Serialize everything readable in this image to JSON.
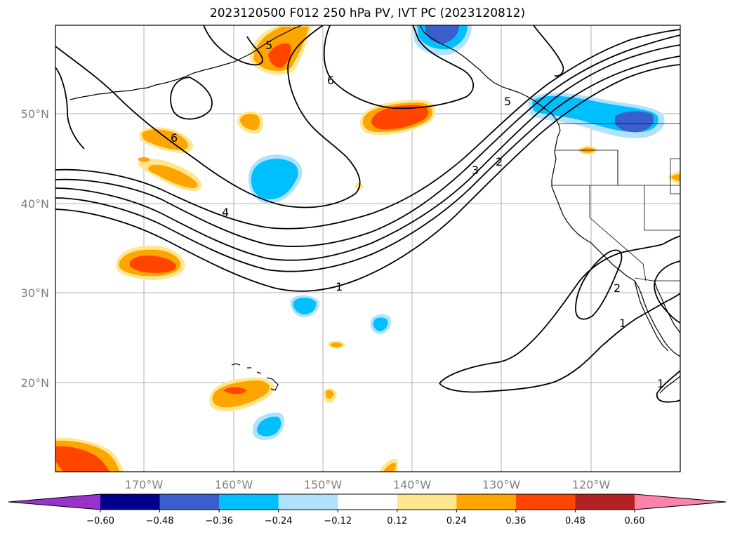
{
  "title": "2023120500 F012 250 hPa PV, IVT PC (2023120812)",
  "lat_labels": [
    "50°N",
    "40°N",
    "30°N",
    "20°N"
  ],
  "lon_labels": [
    "170°W",
    "160°W",
    "150°W",
    "140°W",
    "130°W",
    "120°W"
  ],
  "colorbar": {
    "tick_labels": [
      "−0.60",
      "−0.48",
      "−0.36",
      "−0.24",
      "−0.12",
      "0.12",
      "0.24",
      "0.36",
      "0.48",
      "0.60"
    ],
    "colors": [
      "#9932cc",
      "#00008b",
      "#3a5fcd",
      "#00bfff",
      "#b0e2ff",
      "#ffffff",
      "#ffe68f",
      "#ffa500",
      "#ff4500",
      "#b22222",
      "#ff82ab"
    ]
  },
  "contour_labels": [
    "6",
    "6",
    "5",
    "4",
    "3",
    "2",
    "1",
    "5",
    "2",
    "1",
    "1"
  ]
}
